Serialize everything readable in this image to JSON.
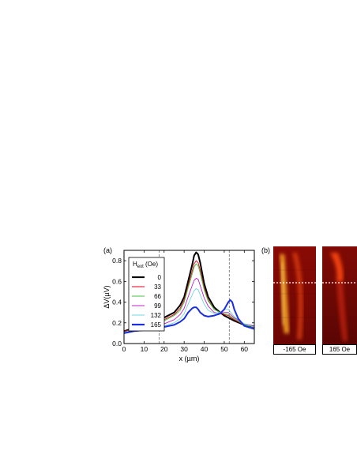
{
  "panel_a_label": "(a)",
  "panel_b_label": "(b)",
  "colors": {
    "0": "#000000",
    "33": "#e0001b",
    "66": "#3cc43c",
    "99": "#c020c8",
    "132": "#70d8e0",
    "165": "#1a2ee0"
  },
  "chart_data": {
    "type": "line",
    "xlabel": "x (µm)",
    "ylabel": "ΔV(µV)",
    "xlim": [
      0,
      65
    ],
    "ylim": [
      0.0,
      0.9
    ],
    "xticks": [
      "0",
      "10",
      "20",
      "30",
      "40",
      "50",
      "60"
    ],
    "yticks": [
      "0.0",
      "0.2",
      "0.4",
      "0.6",
      "0.8"
    ],
    "legend_title_main": "H",
    "legend_title_sub": "ext",
    "legend_title_unit": " (Oe)",
    "legend_position": "top-left",
    "vlines": [
      17.5,
      52.5
    ],
    "series": [
      {
        "name": "0",
        "x": [
          0,
          5,
          10,
          15,
          20,
          25,
          28,
          30,
          32,
          34,
          35,
          36,
          37,
          38,
          40,
          42,
          45,
          48,
          50,
          52,
          55,
          60,
          65
        ],
        "y": [
          0.12,
          0.15,
          0.18,
          0.22,
          0.25,
          0.3,
          0.37,
          0.45,
          0.6,
          0.76,
          0.85,
          0.88,
          0.86,
          0.78,
          0.58,
          0.45,
          0.35,
          0.3,
          0.27,
          0.25,
          0.22,
          0.18,
          0.16
        ]
      },
      {
        "name": "33",
        "x": [
          0,
          5,
          10,
          15,
          20,
          25,
          28,
          30,
          32,
          34,
          35,
          36,
          37,
          38,
          40,
          42,
          45,
          48,
          50,
          52,
          55,
          60,
          65
        ],
        "y": [
          0.12,
          0.14,
          0.17,
          0.2,
          0.23,
          0.28,
          0.34,
          0.42,
          0.56,
          0.7,
          0.77,
          0.8,
          0.78,
          0.71,
          0.54,
          0.42,
          0.33,
          0.3,
          0.28,
          0.27,
          0.23,
          0.18,
          0.16
        ]
      },
      {
        "name": "66",
        "x": [
          0,
          5,
          10,
          15,
          20,
          25,
          28,
          30,
          32,
          34,
          35,
          36,
          37,
          38,
          40,
          42,
          45,
          48,
          50,
          52,
          55,
          60,
          65
        ],
        "y": [
          0.11,
          0.13,
          0.16,
          0.19,
          0.22,
          0.27,
          0.32,
          0.4,
          0.54,
          0.67,
          0.74,
          0.77,
          0.75,
          0.68,
          0.52,
          0.41,
          0.33,
          0.3,
          0.29,
          0.28,
          0.24,
          0.18,
          0.16
        ]
      },
      {
        "name": "99",
        "x": [
          0,
          5,
          10,
          15,
          20,
          25,
          28,
          30,
          32,
          34,
          35,
          36,
          37,
          38,
          40,
          42,
          45,
          48,
          50,
          52,
          55,
          60,
          65
        ],
        "y": [
          0.11,
          0.12,
          0.14,
          0.16,
          0.19,
          0.23,
          0.28,
          0.34,
          0.45,
          0.56,
          0.61,
          0.63,
          0.62,
          0.56,
          0.44,
          0.36,
          0.3,
          0.29,
          0.3,
          0.3,
          0.25,
          0.19,
          0.17
        ]
      },
      {
        "name": "132",
        "x": [
          0,
          5,
          10,
          15,
          20,
          25,
          28,
          30,
          32,
          34,
          35,
          36,
          37,
          38,
          40,
          42,
          45,
          48,
          50,
          52,
          55,
          60,
          65
        ],
        "y": [
          0.11,
          0.12,
          0.13,
          0.15,
          0.17,
          0.2,
          0.24,
          0.29,
          0.38,
          0.47,
          0.51,
          0.53,
          0.52,
          0.47,
          0.38,
          0.32,
          0.29,
          0.3,
          0.33,
          0.33,
          0.26,
          0.19,
          0.16
        ]
      },
      {
        "name": "165",
        "x": [
          0,
          5,
          10,
          15,
          20,
          25,
          28,
          30,
          32,
          34,
          35,
          36,
          37,
          38,
          40,
          42,
          45,
          48,
          50,
          52,
          53,
          54,
          55,
          57,
          60,
          65
        ],
        "y": [
          0.1,
          0.12,
          0.13,
          0.15,
          0.16,
          0.18,
          0.21,
          0.24,
          0.3,
          0.34,
          0.35,
          0.35,
          0.33,
          0.3,
          0.27,
          0.26,
          0.27,
          0.29,
          0.33,
          0.4,
          0.42,
          0.4,
          0.33,
          0.24,
          0.17,
          0.14
        ]
      }
    ]
  },
  "images": [
    {
      "caption": "-165 Oe"
    },
    {
      "caption": "165 Oe"
    }
  ]
}
